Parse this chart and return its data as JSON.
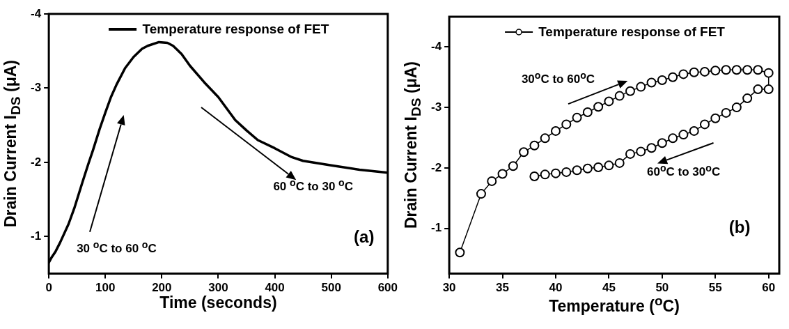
{
  "chart_data": [
    {
      "type": "line",
      "xlabel": "Time (seconds)",
      "ylabel": "Drain Current I$_{DS}$ (μA)",
      "xlim": [
        0,
        600
      ],
      "xticks": [
        0,
        100,
        200,
        300,
        400,
        500,
        600
      ],
      "ylim": [
        -0.5,
        -4
      ],
      "yticks": [
        -1,
        -2,
        -3,
        -4
      ],
      "legend": "top",
      "grid": false,
      "marker": "none",
      "line_style": "solid",
      "annotations": [
        "30 $^{o}$C to 60 $^{o}$C",
        "60 $^{o}$C to 30 $^{o}$C",
        "(a)"
      ],
      "series": [
        {
          "name": "Temperature response of FET",
          "color": "#000000",
          "x": [
            0,
            5,
            12,
            20,
            35,
            45,
            59,
            70,
            78,
            90,
            100,
            110,
            120,
            135,
            150,
            165,
            175,
            195,
            210,
            220,
            235,
            250,
            275,
            300,
            330,
            350,
            370,
            400,
            430,
            450,
            500,
            550,
            600
          ],
          "values": [
            -0.65,
            -0.72,
            -0.8,
            -0.92,
            -1.17,
            -1.38,
            -1.72,
            -1.98,
            -2.16,
            -2.45,
            -2.67,
            -2.88,
            -3.05,
            -3.27,
            -3.42,
            -3.53,
            -3.57,
            -3.62,
            -3.61,
            -3.57,
            -3.46,
            -3.3,
            -3.08,
            -2.88,
            -2.57,
            -2.43,
            -2.3,
            -2.19,
            -2.07,
            -2.02,
            -1.96,
            -1.9,
            -1.86
          ]
        }
      ]
    },
    {
      "type": "line",
      "xlabel": "Temperature ($^{o}$C)",
      "ylabel": "Drain Current I$_{DS}$ (μA)",
      "xlim": [
        30,
        61
      ],
      "xticks": [
        30,
        35,
        40,
        45,
        50,
        55,
        60
      ],
      "ylim": [
        -0.25,
        -4.5
      ],
      "yticks": [
        -1,
        -2,
        -3,
        -4
      ],
      "legend": "top",
      "grid": false,
      "marker": "circle",
      "line_style": "solid",
      "annotations": [
        "30$^{o}$C to 60$^{o}$C",
        "60$^{o}$C to 30$^{o}$C",
        "(b)"
      ],
      "series": [
        {
          "name": "Temperature response of FET",
          "color": "#000000",
          "x": [
            31,
            33,
            34,
            35,
            36,
            37,
            38,
            39,
            40,
            41,
            42,
            43,
            44,
            45,
            46,
            47,
            48,
            49,
            50,
            51,
            52,
            53,
            54,
            55,
            56,
            57,
            58,
            59,
            60,
            60,
            59,
            58,
            57,
            56,
            55,
            54,
            53,
            52,
            51,
            50,
            49,
            48,
            47,
            46,
            45,
            44,
            43,
            42,
            41,
            40,
            39,
            38
          ],
          "values": [
            -0.6,
            -1.57,
            -1.78,
            -1.9,
            -2.03,
            -2.26,
            -2.37,
            -2.49,
            -2.61,
            -2.72,
            -2.83,
            -2.92,
            -3.01,
            -3.1,
            -3.19,
            -3.27,
            -3.34,
            -3.41,
            -3.45,
            -3.5,
            -3.55,
            -3.58,
            -3.59,
            -3.61,
            -3.62,
            -3.62,
            -3.62,
            -3.62,
            -3.57,
            -3.3,
            -3.3,
            -3.15,
            -3.0,
            -2.91,
            -2.82,
            -2.72,
            -2.61,
            -2.55,
            -2.49,
            -2.41,
            -2.33,
            -2.27,
            -2.23,
            -2.08,
            -2.04,
            -2.01,
            -1.99,
            -1.96,
            -1.93,
            -1.91,
            -1.89,
            -1.86
          ]
        }
      ]
    }
  ]
}
